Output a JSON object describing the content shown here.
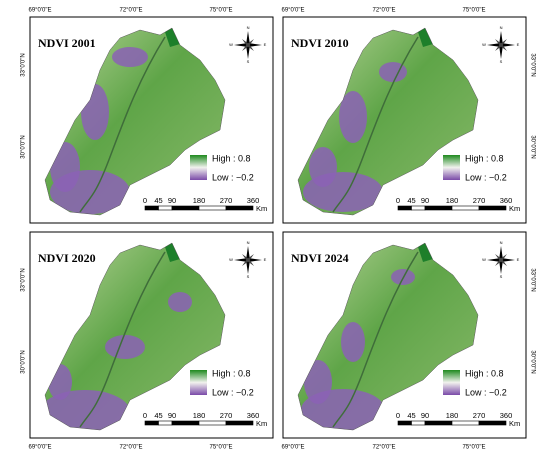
{
  "longitude_labels": [
    "69°0'0\"E",
    "72°0'0\"E",
    "75°0'0\"E"
  ],
  "latitude_labels": [
    "33°0'0\"N",
    "30°0'0\"N"
  ],
  "panels": [
    {
      "title": "NDVI 2001",
      "legend": {
        "high": "High : 0.8",
        "low": "Low : −0.2"
      },
      "scale": {
        "ticks": [
          "0",
          "45",
          "90",
          "180",
          "270",
          "360"
        ],
        "unit": "Km"
      },
      "compass": {
        "n": "N",
        "s": "S",
        "e": "E",
        "w": "W"
      }
    },
    {
      "title": "NDVI 2010",
      "legend": {
        "high": "High : 0.8",
        "low": "Low : −0.2"
      },
      "scale": {
        "ticks": [
          "0",
          "45",
          "90",
          "180",
          "270",
          "360"
        ],
        "unit": "Km"
      },
      "compass": {
        "n": "N",
        "s": "S",
        "e": "E",
        "w": "W"
      }
    },
    {
      "title": "NDVI 2020",
      "legend": {
        "high": "High : 0.8",
        "low": "Low : −0.2"
      },
      "scale": {
        "ticks": [
          "0",
          "45",
          "90",
          "180",
          "270",
          "360"
        ],
        "unit": "Km"
      },
      "compass": {
        "n": "N",
        "s": "S",
        "e": "E",
        "w": "W"
      }
    },
    {
      "title": "NDVI 2024",
      "legend": {
        "high": "High : 0.8",
        "low": "Low : −0.2"
      },
      "scale": {
        "ticks": [
          "0",
          "45",
          "90",
          "180",
          "270",
          "360"
        ],
        "unit": "Km"
      },
      "compass": {
        "n": "N",
        "s": "S",
        "e": "E",
        "w": "W"
      }
    }
  ]
}
